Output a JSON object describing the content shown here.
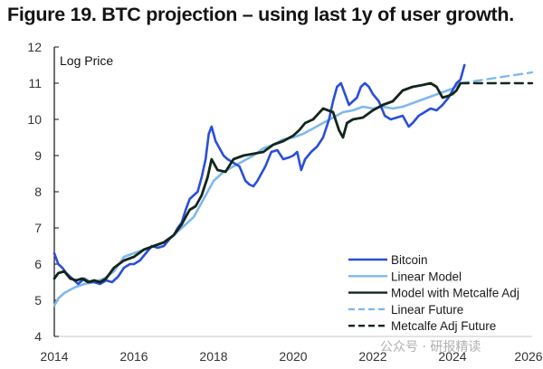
{
  "title": "Figure 19. BTC projection – using last 1y of user growth.",
  "watermark": "公众号 · 研报精读",
  "colors": {
    "bitcoin": "#2b4fd6",
    "linear_model": "#7fb8ec",
    "metcalfe": "#13261a",
    "linear_future": "#7fb8ec",
    "metcalfe_future": "#13261a",
    "axis": "#111111",
    "baseline": "#c8c8c8"
  },
  "chart_data": {
    "type": "line",
    "title": "Figure 19. BTC projection – using last 1y of user growth.",
    "xlabel": "",
    "ylabel": "Log Price",
    "xlim": [
      2014,
      2026
    ],
    "ylim": [
      4,
      12
    ],
    "xticks": [
      2014,
      2016,
      2018,
      2020,
      2022,
      2024,
      2026
    ],
    "yticks": [
      4,
      5,
      6,
      7,
      8,
      9,
      10,
      11,
      12
    ],
    "grid": false,
    "legend_position": "bottom-right",
    "legend": [
      "Bitcoin",
      "Linear Model",
      "Model with Metcalfe Adj",
      "Linear Future",
      "Metcalfe Adj Future"
    ],
    "series": [
      {
        "name": "Bitcoin",
        "style": "solid",
        "x": [
          2014.0,
          2014.1,
          2014.2,
          2014.3,
          2014.45,
          2014.6,
          2014.75,
          2014.9,
          2015.0,
          2015.15,
          2015.3,
          2015.45,
          2015.6,
          2015.75,
          2015.9,
          2016.0,
          2016.15,
          2016.3,
          2016.45,
          2016.6,
          2016.75,
          2016.9,
          2017.0,
          2017.1,
          2017.2,
          2017.3,
          2017.4,
          2017.5,
          2017.6,
          2017.7,
          2017.8,
          2017.88,
          2017.95,
          2018.05,
          2018.15,
          2018.25,
          2018.35,
          2018.5,
          2018.65,
          2018.8,
          2018.9,
          2019.0,
          2019.1,
          2019.2,
          2019.3,
          2019.45,
          2019.6,
          2019.75,
          2019.9,
          2020.0,
          2020.1,
          2020.2,
          2020.3,
          2020.45,
          2020.6,
          2020.75,
          2020.9,
          2021.0,
          2021.1,
          2021.2,
          2021.3,
          2021.4,
          2021.5,
          2021.6,
          2021.7,
          2021.8,
          2021.9,
          2022.0,
          2022.15,
          2022.3,
          2022.45,
          2022.6,
          2022.75,
          2022.9,
          2023.0,
          2023.15,
          2023.3,
          2023.45,
          2023.6,
          2023.75,
          2023.9,
          2024.0,
          2024.1,
          2024.2,
          2024.3
        ],
        "y": [
          6.3,
          6.0,
          5.9,
          5.75,
          5.6,
          5.45,
          5.6,
          5.5,
          5.5,
          5.45,
          5.55,
          5.5,
          5.65,
          5.9,
          6.0,
          6.0,
          6.1,
          6.3,
          6.5,
          6.45,
          6.5,
          6.7,
          6.8,
          7.0,
          7.15,
          7.5,
          7.8,
          7.9,
          8.0,
          8.4,
          8.9,
          9.6,
          9.8,
          9.4,
          9.2,
          9.0,
          8.9,
          8.8,
          8.7,
          8.3,
          8.2,
          8.15,
          8.3,
          8.5,
          8.7,
          9.1,
          9.15,
          8.9,
          8.95,
          9.0,
          9.1,
          8.6,
          8.9,
          9.1,
          9.25,
          9.5,
          10.0,
          10.5,
          10.9,
          11.0,
          10.7,
          10.4,
          10.5,
          10.6,
          10.9,
          11.0,
          10.9,
          10.7,
          10.5,
          10.1,
          10.0,
          10.05,
          10.1,
          9.8,
          9.9,
          10.1,
          10.2,
          10.3,
          10.25,
          10.4,
          10.6,
          10.8,
          11.0,
          11.1,
          11.5
        ]
      },
      {
        "name": "Linear Model",
        "style": "solid",
        "x": [
          2014.0,
          2014.1,
          2014.25,
          2014.5,
          2014.75,
          2015.0,
          2015.25,
          2015.5,
          2015.75,
          2016.0,
          2016.25,
          2016.5,
          2016.75,
          2017.0,
          2017.25,
          2017.5,
          2017.75,
          2018.0,
          2018.25,
          2018.5,
          2018.75,
          2019.0,
          2019.25,
          2019.5,
          2019.75,
          2020.0,
          2020.25,
          2020.5,
          2020.75,
          2021.0,
          2021.25,
          2021.5,
          2021.75,
          2022.0,
          2022.25,
          2022.5,
          2022.75,
          2023.0,
          2023.25,
          2023.5,
          2023.75,
          2024.0,
          2024.2
        ],
        "y": [
          4.85,
          5.05,
          5.2,
          5.35,
          5.45,
          5.5,
          5.6,
          5.8,
          6.2,
          6.3,
          6.4,
          6.5,
          6.6,
          6.8,
          7.05,
          7.3,
          7.8,
          8.3,
          8.55,
          8.7,
          8.85,
          9.0,
          9.2,
          9.3,
          9.45,
          9.5,
          9.6,
          9.75,
          9.9,
          10.05,
          10.2,
          10.25,
          10.35,
          10.3,
          10.35,
          10.3,
          10.35,
          10.45,
          10.55,
          10.65,
          10.75,
          10.85,
          11.0
        ]
      },
      {
        "name": "Model with Metcalfe Adj",
        "style": "solid",
        "x": [
          2014.0,
          2014.1,
          2014.25,
          2014.4,
          2014.55,
          2014.7,
          2014.85,
          2015.0,
          2015.15,
          2015.3,
          2015.5,
          2015.75,
          2016.0,
          2016.25,
          2016.5,
          2016.75,
          2017.0,
          2017.2,
          2017.4,
          2017.55,
          2017.7,
          2017.85,
          2017.95,
          2018.1,
          2018.3,
          2018.5,
          2018.75,
          2019.0,
          2019.25,
          2019.5,
          2019.75,
          2020.0,
          2020.15,
          2020.3,
          2020.5,
          2020.75,
          2021.0,
          2021.15,
          2021.25,
          2021.35,
          2021.5,
          2021.75,
          2022.0,
          2022.25,
          2022.5,
          2022.75,
          2023.0,
          2023.25,
          2023.45,
          2023.6,
          2023.75,
          2023.9,
          2024.0,
          2024.1,
          2024.2
        ],
        "y": [
          5.6,
          5.75,
          5.8,
          5.6,
          5.55,
          5.6,
          5.5,
          5.55,
          5.5,
          5.6,
          5.9,
          6.1,
          6.2,
          6.4,
          6.5,
          6.6,
          6.8,
          7.1,
          7.5,
          7.6,
          7.9,
          8.4,
          8.9,
          8.6,
          8.55,
          8.9,
          9.0,
          9.05,
          9.1,
          9.3,
          9.4,
          9.55,
          9.7,
          9.9,
          10.0,
          10.3,
          10.2,
          9.7,
          9.5,
          9.9,
          10.0,
          10.05,
          10.25,
          10.4,
          10.5,
          10.8,
          10.9,
          10.95,
          11.0,
          10.9,
          10.6,
          10.65,
          10.7,
          10.8,
          11.0
        ]
      },
      {
        "name": "Linear Future",
        "style": "dashed",
        "x": [
          2024.2,
          2026.0
        ],
        "y": [
          11.0,
          11.3
        ]
      },
      {
        "name": "Metcalfe Adj Future",
        "style": "dashed",
        "x": [
          2024.2,
          2026.0
        ],
        "y": [
          11.0,
          11.0
        ]
      }
    ]
  }
}
